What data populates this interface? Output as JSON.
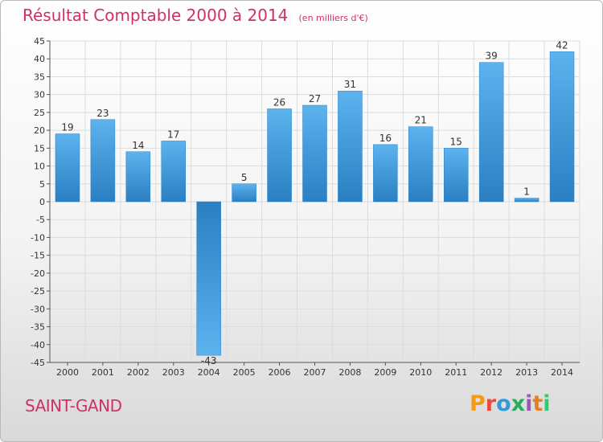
{
  "header": {
    "title": "Résultat Comptable 2000 à 2014",
    "subtitle": "(en milliers d'€)"
  },
  "footer": {
    "place": "SAINT-GAND",
    "logo_text": "Proxiti",
    "logo_colors": [
      "#f39c12",
      "#e74c3c",
      "#3498db",
      "#27ae60",
      "#9b59b6",
      "#e67e22",
      "#2ecc71"
    ]
  },
  "chart_data": {
    "type": "bar",
    "title": "Résultat Comptable 2000 à 2014",
    "subtitle": "(en milliers d'€)",
    "xlabel": "",
    "ylabel": "",
    "categories": [
      "2000",
      "2001",
      "2002",
      "2003",
      "2004",
      "2005",
      "2006",
      "2007",
      "2008",
      "2009",
      "2010",
      "2011",
      "2012",
      "2013",
      "2014"
    ],
    "values": [
      19,
      23,
      14,
      17,
      -43,
      5,
      26,
      27,
      31,
      16,
      21,
      15,
      39,
      1,
      42
    ],
    "ylim": [
      -45,
      45
    ],
    "yticks": [
      45,
      40,
      35,
      30,
      25,
      20,
      15,
      10,
      5,
      0,
      -5,
      -10,
      -15,
      -20,
      -25,
      -30,
      -35,
      -40,
      -45
    ],
    "grid": true,
    "bar_color": "#3d96d8"
  }
}
